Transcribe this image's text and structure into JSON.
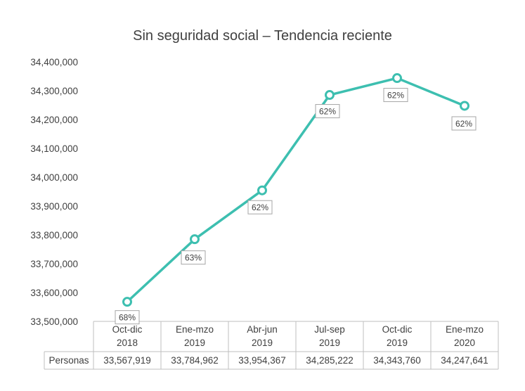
{
  "chart_data": {
    "type": "line",
    "title": "Sin seguridad social – Tendencia reciente",
    "categories": [
      [
        "Oct-dic",
        "2018"
      ],
      [
        "Ene-mzo",
        "2019"
      ],
      [
        "Abr-jun",
        "2019"
      ],
      [
        "Jul-sep",
        "2019"
      ],
      [
        "Oct-dic",
        "2019"
      ],
      [
        "Ene-mzo",
        "2020"
      ]
    ],
    "series": [
      {
        "name": "Personas",
        "values": [
          33567919,
          33784962,
          33954367,
          34285222,
          34343760,
          34247641
        ],
        "value_labels": [
          "33,567,919",
          "33,784,962",
          "33,954,367",
          "34,285,222",
          "34,343,760",
          "34,247,641"
        ],
        "point_labels": [
          "68%",
          "63%",
          "62%",
          "62%",
          "62%",
          "62%"
        ]
      }
    ],
    "ylim": [
      33500000,
      34400000
    ],
    "yticks": [
      "33,500,000",
      "33,600,000",
      "33,700,000",
      "33,800,000",
      "33,900,000",
      "34,000,000",
      "34,100,000",
      "34,200,000",
      "34,300,000",
      "34,400,000"
    ],
    "grid": false,
    "legend": "data-table",
    "line_color": "#3dbfb0"
  }
}
